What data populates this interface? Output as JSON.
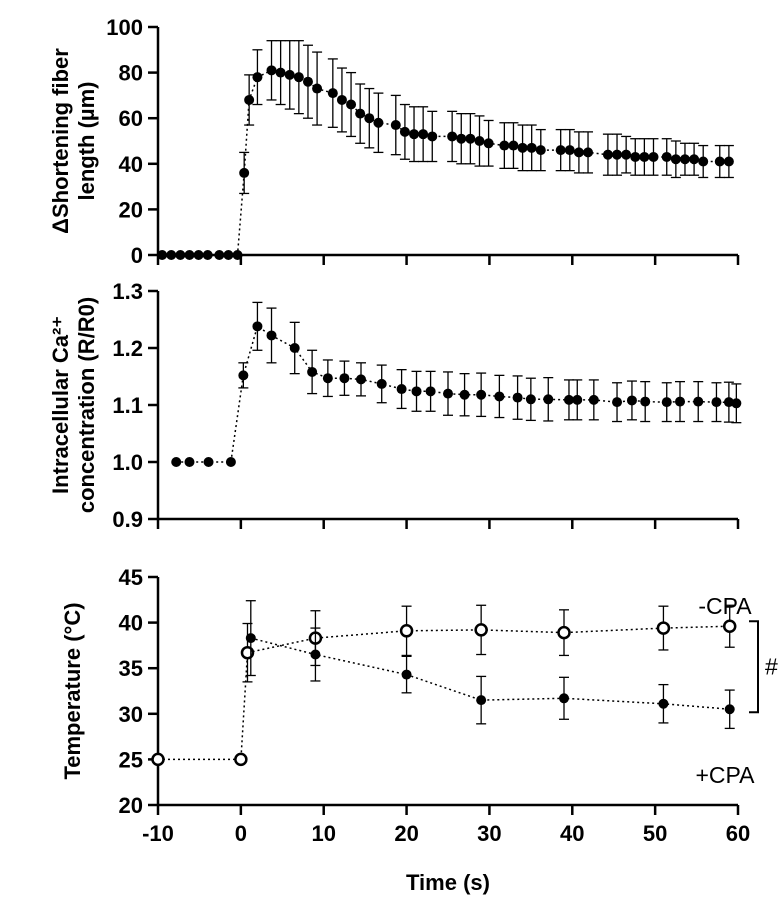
{
  "chart_data": [
    {
      "type": "scatter",
      "panel": "top",
      "ylabel_lines": [
        "ΔShortening fiber",
        "length (µm)"
      ],
      "ylim": [
        0,
        100
      ],
      "yticks": [
        0,
        20,
        40,
        60,
        80,
        100
      ],
      "xlim": [
        -10,
        60
      ],
      "series": [
        {
          "marker": "filled",
          "x": [
            -9.5,
            -8.4,
            -7.3,
            -6.2,
            -5.1,
            -4.0,
            -2.6,
            -1.5,
            -0.4,
            0.4,
            1.0,
            2.0,
            3.7,
            4.8,
            5.9,
            7.0,
            8.1,
            9.2,
            11.1,
            12.2,
            13.3,
            14.4,
            15.5,
            16.6,
            18.7,
            19.8,
            20.9,
            22.0,
            23.1,
            25.5,
            26.6,
            27.7,
            28.8,
            29.9,
            31.8,
            32.9,
            34.0,
            35.1,
            36.2,
            38.6,
            39.7,
            40.8,
            41.9,
            44.3,
            45.4,
            46.5,
            47.6,
            48.7,
            49.8,
            51.4,
            52.5,
            53.6,
            54.7,
            55.8,
            57.8,
            58.9
          ],
          "y": [
            0,
            0,
            0,
            0,
            0,
            0,
            0,
            0,
            0,
            36,
            68,
            78,
            81,
            80,
            79,
            78,
            76,
            73,
            71,
            68,
            66,
            62,
            60,
            58,
            57,
            54,
            53,
            53,
            52,
            52,
            51,
            51,
            50,
            49,
            48,
            48,
            47,
            47,
            46,
            46,
            46,
            45,
            45,
            44,
            44,
            44,
            43,
            43,
            43,
            43,
            42,
            42,
            42,
            41,
            41,
            41
          ],
          "err": [
            0,
            0,
            0,
            0,
            0,
            0,
            0,
            0,
            0,
            9,
            11,
            12,
            13,
            14,
            15,
            16,
            16,
            16,
            15,
            14,
            14,
            13,
            13,
            13,
            13,
            12,
            12,
            12,
            11,
            11,
            11,
            11,
            11,
            10,
            10,
            10,
            10,
            10,
            9,
            9,
            9,
            9,
            9,
            9,
            9,
            8,
            8,
            8,
            8,
            8,
            8,
            7,
            7,
            7,
            7,
            7
          ]
        }
      ]
    },
    {
      "type": "scatter",
      "panel": "middle",
      "ylabel_lines": [
        "Intracellular Ca²⁺",
        "concentration (R/R0)"
      ],
      "ylim": [
        0.9,
        1.3
      ],
      "yticks": [
        0.9,
        1.0,
        1.1,
        1.2,
        1.3
      ],
      "xlim": [
        -10,
        60
      ],
      "series": [
        {
          "marker": "filled",
          "x": [
            -7.8,
            -6.2,
            -3.9,
            -1.2,
            0.3,
            2.0,
            3.7,
            6.5,
            8.6,
            10.5,
            12.5,
            14.5,
            17.0,
            19.4,
            21.2,
            22.9,
            25.0,
            27.0,
            29.0,
            31.2,
            33.4,
            35.0,
            37.1,
            39.6,
            40.6,
            42.6,
            45.4,
            47.2,
            48.8,
            51.4,
            53.0,
            55.2,
            57.4,
            58.9,
            59.8
          ],
          "y": [
            1.0,
            1.0,
            1.0,
            1.0,
            1.152,
            1.238,
            1.222,
            1.2,
            1.158,
            1.147,
            1.147,
            1.145,
            1.137,
            1.128,
            1.124,
            1.124,
            1.12,
            1.118,
            1.118,
            1.115,
            1.113,
            1.11,
            1.11,
            1.109,
            1.109,
            1.109,
            1.105,
            1.108,
            1.106,
            1.105,
            1.106,
            1.106,
            1.105,
            1.105,
            1.103
          ],
          "err": [
            0,
            0,
            0,
            0,
            0.022,
            0.042,
            0.048,
            0.045,
            0.038,
            0.032,
            0.03,
            0.029,
            0.033,
            0.034,
            0.035,
            0.035,
            0.038,
            0.037,
            0.038,
            0.037,
            0.038,
            0.037,
            0.038,
            0.035,
            0.035,
            0.035,
            0.034,
            0.034,
            0.035,
            0.034,
            0.035,
            0.035,
            0.034,
            0.035,
            0.034
          ]
        }
      ]
    },
    {
      "type": "scatter",
      "panel": "bottom",
      "ylabel": "Temperature (°C)",
      "xlabel": "Time (s)",
      "ylim": [
        20,
        45
      ],
      "yticks": [
        20,
        25,
        30,
        35,
        40,
        45
      ],
      "xlim": [
        -10,
        60
      ],
      "xticks": [
        -10,
        0,
        10,
        20,
        30,
        40,
        50,
        60
      ],
      "significance_marker": "#",
      "series": [
        {
          "name": "-CPA",
          "marker": "open",
          "x": [
            -10,
            0,
            0.8,
            9,
            20,
            29,
            39,
            51,
            59
          ],
          "y": [
            25,
            25,
            36.7,
            38.3,
            39.1,
            39.2,
            38.9,
            39.4,
            39.6
          ],
          "err": [
            0,
            0,
            3.2,
            3.0,
            2.7,
            2.7,
            2.5,
            2.4,
            2.3
          ]
        },
        {
          "name": "+CPA",
          "marker": "filled",
          "x": [
            1.2,
            9,
            20,
            29,
            39,
            51,
            59
          ],
          "y": [
            38.3,
            36.5,
            34.3,
            31.5,
            31.7,
            31.1,
            30.5
          ],
          "err": [
            4.1,
            2.9,
            2.0,
            2.6,
            2.3,
            2.1,
            2.1
          ]
        }
      ]
    }
  ]
}
